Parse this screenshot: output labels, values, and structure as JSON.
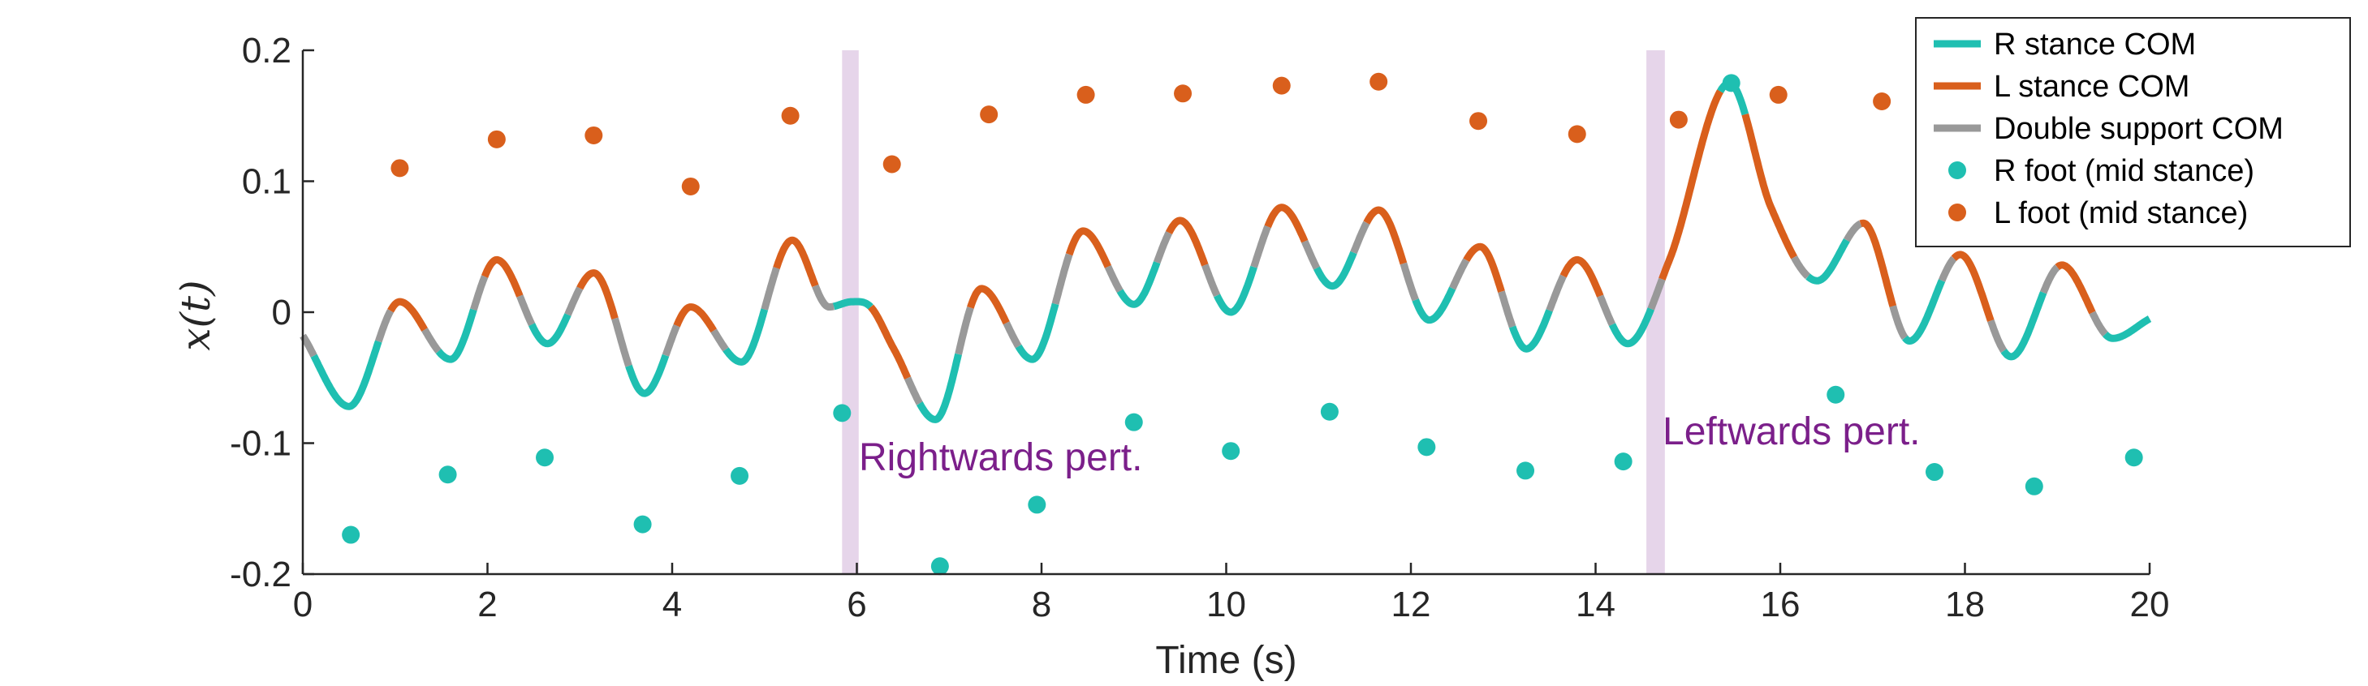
{
  "chart_data": {
    "type": "line",
    "xlabel": "Time (s)",
    "ylabel": "x(t)",
    "xlim": [
      0,
      20
    ],
    "ylim": [
      -0.2,
      0.2
    ],
    "xticks": [
      0,
      2,
      4,
      6,
      8,
      10,
      12,
      14,
      16,
      18,
      20
    ],
    "yticks": [
      -0.2,
      -0.1,
      0,
      0.1,
      0.2
    ],
    "xtick_labels": [
      "0",
      "2",
      "4",
      "6",
      "8",
      "10",
      "12",
      "14",
      "16",
      "18",
      "20"
    ],
    "ytick_labels": [
      "-0.2",
      "-0.1",
      "0",
      "0.1",
      "0.2"
    ],
    "grid": false,
    "legend_position": "top-right",
    "colors": {
      "r_stance": "#1fbfb1",
      "l_stance": "#d95f1c",
      "double_support": "#999999",
      "perturbation": "#e6d5ea",
      "annotation": "#7b1f8a"
    },
    "com_keypoints": {
      "x": [
        0,
        0.5,
        1.05,
        1.6,
        2.1,
        2.65,
        3.15,
        3.7,
        4.2,
        4.75,
        5.3,
        5.7,
        5.95,
        6.15,
        6.4,
        6.85,
        7.35,
        7.9,
        8.45,
        9.0,
        9.5,
        10.05,
        10.6,
        11.15,
        11.65,
        12.2,
        12.75,
        13.25,
        13.8,
        14.35,
        14.8,
        15.45,
        15.9,
        16.4,
        16.9,
        17.4,
        17.95,
        18.5,
        19.05,
        19.6,
        20.0
      ],
      "y": [
        -0.018,
        -0.072,
        0.008,
        -0.036,
        0.04,
        -0.024,
        0.03,
        -0.062,
        0.004,
        -0.038,
        0.055,
        0.004,
        0.008,
        0.004,
        -0.028,
        -0.082,
        0.018,
        -0.036,
        0.062,
        0.006,
        0.07,
        0.0,
        0.08,
        0.02,
        0.078,
        -0.006,
        0.05,
        -0.028,
        0.04,
        -0.024,
        0.04,
        0.175,
        0.08,
        0.024,
        0.068,
        -0.022,
        0.044,
        -0.034,
        0.036,
        -0.02,
        -0.005
      ]
    },
    "stance_phases": [
      {
        "phase": "R",
        "start": 0.0,
        "end": 0.0
      },
      {
        "phase": "DS",
        "start": 0.0,
        "end": 0.12
      },
      {
        "phase": "R",
        "start": 0.12,
        "end": 0.82
      },
      {
        "phase": "DS",
        "start": 0.82,
        "end": 0.95
      },
      {
        "phase": "L",
        "start": 0.95,
        "end": 1.32
      },
      {
        "phase": "DS",
        "start": 1.32,
        "end": 1.47
      },
      {
        "phase": "R",
        "start": 1.47,
        "end": 1.85
      },
      {
        "phase": "DS",
        "start": 1.85,
        "end": 1.97
      },
      {
        "phase": "L",
        "start": 1.97,
        "end": 2.35
      },
      {
        "phase": "DS",
        "start": 2.35,
        "end": 2.48
      },
      {
        "phase": "R",
        "start": 2.48,
        "end": 2.87
      },
      {
        "phase": "DS",
        "start": 2.87,
        "end": 3.0
      },
      {
        "phase": "L",
        "start": 3.0,
        "end": 3.38
      },
      {
        "phase": "DS",
        "start": 3.38,
        "end": 3.53
      },
      {
        "phase": "R",
        "start": 3.53,
        "end": 3.93
      },
      {
        "phase": "DS",
        "start": 3.93,
        "end": 4.05
      },
      {
        "phase": "L",
        "start": 4.05,
        "end": 4.45
      },
      {
        "phase": "DS",
        "start": 4.45,
        "end": 4.58
      },
      {
        "phase": "R",
        "start": 4.58,
        "end": 5.0
      },
      {
        "phase": "DS",
        "start": 5.0,
        "end": 5.13
      },
      {
        "phase": "L",
        "start": 5.13,
        "end": 5.55
      },
      {
        "phase": "DS",
        "start": 5.55,
        "end": 5.75
      },
      {
        "phase": "R",
        "start": 5.75,
        "end": 6.15
      },
      {
        "phase": "L",
        "start": 6.15,
        "end": 6.55
      },
      {
        "phase": "DS",
        "start": 6.55,
        "end": 6.68
      },
      {
        "phase": "R",
        "start": 6.68,
        "end": 7.1
      },
      {
        "phase": "DS",
        "start": 7.1,
        "end": 7.23
      },
      {
        "phase": "L",
        "start": 7.23,
        "end": 7.62
      },
      {
        "phase": "DS",
        "start": 7.62,
        "end": 7.75
      },
      {
        "phase": "R",
        "start": 7.75,
        "end": 8.15
      },
      {
        "phase": "DS",
        "start": 8.15,
        "end": 8.3
      },
      {
        "phase": "L",
        "start": 8.3,
        "end": 8.72
      },
      {
        "phase": "DS",
        "start": 8.72,
        "end": 8.85
      },
      {
        "phase": "R",
        "start": 8.85,
        "end": 9.25
      },
      {
        "phase": "DS",
        "start": 9.25,
        "end": 9.38
      },
      {
        "phase": "L",
        "start": 9.38,
        "end": 9.77
      },
      {
        "phase": "DS",
        "start": 9.77,
        "end": 9.9
      },
      {
        "phase": "R",
        "start": 9.9,
        "end": 10.3
      },
      {
        "phase": "DS",
        "start": 10.3,
        "end": 10.45
      },
      {
        "phase": "L",
        "start": 10.45,
        "end": 10.85
      },
      {
        "phase": "DS",
        "start": 10.85,
        "end": 10.98
      },
      {
        "phase": "R",
        "start": 10.98,
        "end": 11.38
      },
      {
        "phase": "DS",
        "start": 11.38,
        "end": 11.52
      },
      {
        "phase": "L",
        "start": 11.52,
        "end": 11.92
      },
      {
        "phase": "DS",
        "start": 11.92,
        "end": 12.05
      },
      {
        "phase": "R",
        "start": 12.05,
        "end": 12.45
      },
      {
        "phase": "DS",
        "start": 12.45,
        "end": 12.6
      },
      {
        "phase": "L",
        "start": 12.6,
        "end": 12.98
      },
      {
        "phase": "DS",
        "start": 12.98,
        "end": 13.1
      },
      {
        "phase": "R",
        "start": 13.1,
        "end": 13.5
      },
      {
        "phase": "DS",
        "start": 13.5,
        "end": 13.65
      },
      {
        "phase": "L",
        "start": 13.65,
        "end": 14.05
      },
      {
        "phase": "DS",
        "start": 14.05,
        "end": 14.18
      },
      {
        "phase": "R",
        "start": 14.18,
        "end": 14.6
      },
      {
        "phase": "DS",
        "start": 14.6,
        "end": 14.72
      },
      {
        "phase": "L",
        "start": 14.72,
        "end": 15.35
      },
      {
        "phase": "R",
        "start": 15.35,
        "end": 15.62
      },
      {
        "phase": "L",
        "start": 15.62,
        "end": 16.15
      },
      {
        "phase": "DS",
        "start": 16.15,
        "end": 16.3
      },
      {
        "phase": "R",
        "start": 16.3,
        "end": 16.72
      },
      {
        "phase": "DS",
        "start": 16.72,
        "end": 16.87
      },
      {
        "phase": "L",
        "start": 16.87,
        "end": 17.22
      },
      {
        "phase": "DS",
        "start": 17.22,
        "end": 17.35
      },
      {
        "phase": "R",
        "start": 17.35,
        "end": 17.75
      },
      {
        "phase": "DS",
        "start": 17.75,
        "end": 17.88
      },
      {
        "phase": "L",
        "start": 17.88,
        "end": 18.28
      },
      {
        "phase": "DS",
        "start": 18.28,
        "end": 18.42
      },
      {
        "phase": "R",
        "start": 18.42,
        "end": 18.85
      },
      {
        "phase": "DS",
        "start": 18.85,
        "end": 19.0
      },
      {
        "phase": "L",
        "start": 19.0,
        "end": 19.38
      },
      {
        "phase": "DS",
        "start": 19.38,
        "end": 19.52
      },
      {
        "phase": "R",
        "start": 19.52,
        "end": 20.0
      }
    ],
    "r_foot": {
      "x": [
        0.52,
        1.57,
        2.62,
        3.68,
        4.73,
        5.84,
        6.9,
        7.95,
        9.0,
        10.05,
        11.12,
        12.17,
        13.24,
        14.3,
        15.47,
        16.6,
        17.67,
        18.75,
        19.83
      ],
      "y": [
        -0.17,
        -0.124,
        -0.111,
        -0.162,
        -0.125,
        -0.077,
        -0.194,
        -0.147,
        -0.084,
        -0.106,
        -0.076,
        -0.103,
        -0.121,
        -0.114,
        0.175,
        -0.063,
        -0.122,
        -0.133,
        -0.111
      ]
    },
    "l_foot": {
      "x": [
        1.05,
        2.1,
        3.15,
        4.2,
        5.28,
        6.38,
        7.43,
        8.48,
        9.53,
        10.6,
        11.65,
        12.73,
        13.8,
        14.9,
        15.98,
        17.1
      ],
      "y": [
        0.11,
        0.132,
        0.135,
        0.096,
        0.15,
        0.113,
        0.151,
        0.166,
        0.167,
        0.173,
        0.176,
        0.146,
        0.136,
        0.147,
        0.166,
        0.161
      ]
    },
    "perturbations": [
      {
        "start": 5.84,
        "end": 6.02,
        "label": "Rightwards pert."
      },
      {
        "start": 14.55,
        "end": 14.75,
        "label": "Leftwards pert."
      }
    ],
    "legend": [
      {
        "label": "R stance COM",
        "kind": "line",
        "color": "#1fbfb1"
      },
      {
        "label": "L stance COM",
        "kind": "line",
        "color": "#d95f1c"
      },
      {
        "label": "Double support COM",
        "kind": "line",
        "color": "#999999"
      },
      {
        "label": "R foot (mid stance)",
        "kind": "dot",
        "color": "#1fbfb1"
      },
      {
        "label": "L foot (mid stance)",
        "kind": "dot",
        "color": "#d95f1c"
      }
    ]
  }
}
